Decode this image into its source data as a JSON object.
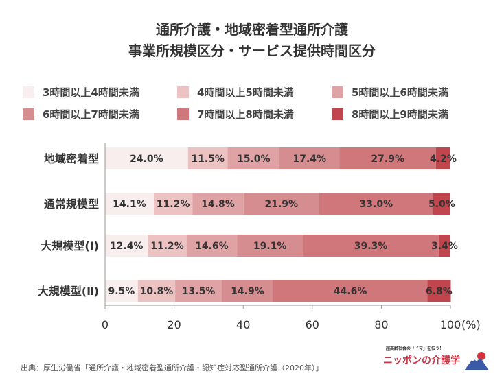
{
  "title": {
    "line1": "通所介護・地域密着型通所介護",
    "line2": "事業所規模区分・サービス提供時間区分"
  },
  "source": "出典：厚生労働省「通所介護・地域密着型通所介護・認知症対応型通所介護（2020年）」",
  "logo": {
    "tagline": "超高齢社会の「イマ」を伝う！",
    "name": "ニッポンの介護学"
  },
  "colors": {
    "text": "#333333",
    "axis": "#999999",
    "series": [
      "#f9eeee",
      "#ecc2c3",
      "#e0a3a5",
      "#d68d90",
      "#d0777b",
      "#c1454c"
    ]
  },
  "chart_data": {
    "type": "bar",
    "orientation": "horizontal",
    "stacked": true,
    "categories": [
      "地域密着型",
      "通常規模型",
      "大規模型(Ⅰ)",
      "大規模型(Ⅱ)"
    ],
    "series": [
      {
        "name": "3時間以上4時間未満",
        "values": [
          24.0,
          14.1,
          12.4,
          9.5
        ]
      },
      {
        "name": "4時間以上5時間未満",
        "values": [
          11.5,
          11.2,
          11.2,
          10.8
        ]
      },
      {
        "name": "5時間以上6時間未満",
        "values": [
          15.0,
          14.8,
          14.6,
          13.5
        ]
      },
      {
        "name": "6時間以上7時間未満",
        "values": [
          17.4,
          21.9,
          19.1,
          14.9
        ]
      },
      {
        "name": "7時間以上8時間未満",
        "values": [
          27.9,
          33.0,
          39.3,
          44.6
        ]
      },
      {
        "name": "8時間以上9時間未満",
        "values": [
          4.2,
          5.0,
          3.4,
          6.8
        ]
      }
    ],
    "data_labels": [
      [
        "24.0%",
        "11.5%",
        "15.0%",
        "17.4%",
        "27.9%",
        "4.2%"
      ],
      [
        "14.1%",
        "11.2%",
        "14.8%",
        "21.9%",
        "33.0%",
        "5.0%"
      ],
      [
        "12.4%",
        "11.2%",
        "14.6%",
        "19.1%",
        "39.3%",
        "3.4%"
      ],
      [
        "9.5%",
        "10.8%",
        "13.5%",
        "14.9%",
        "44.6%",
        "6.8%"
      ]
    ],
    "xticks": [
      "0",
      "20",
      "40",
      "60",
      "80",
      "100"
    ],
    "xlim": [
      0,
      100
    ],
    "unit": "(%)",
    "legend_position": "top",
    "grid": false
  }
}
